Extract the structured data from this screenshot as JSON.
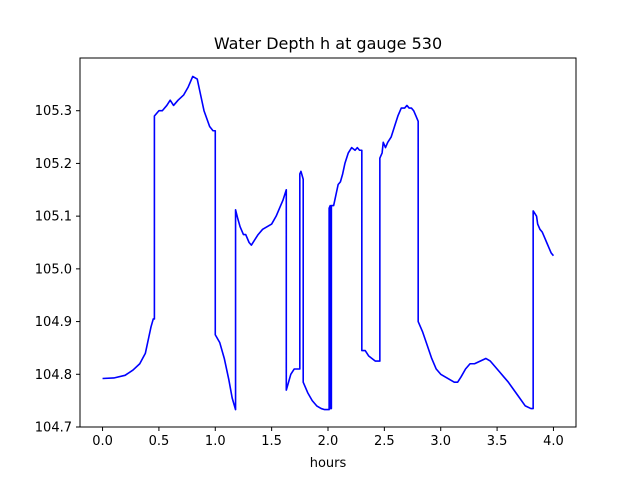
{
  "chart_data": {
    "type": "line",
    "title": "Water Depth h at gauge 530",
    "xlabel": "hours",
    "ylabel": "",
    "xlim": [
      -0.2,
      4.2
    ],
    "ylim": [
      104.7,
      105.4
    ],
    "xticks": [
      0.0,
      0.5,
      1.0,
      1.5,
      2.0,
      2.5,
      3.0,
      3.5,
      4.0
    ],
    "xtick_labels": [
      "0.0",
      "0.5",
      "1.0",
      "1.5",
      "2.0",
      "2.5",
      "3.0",
      "3.5",
      "4.0"
    ],
    "yticks": [
      104.7,
      104.8,
      104.9,
      105.0,
      105.1,
      105.2,
      105.3
    ],
    "ytick_labels": [
      "104.7",
      "104.8",
      "104.9",
      "105.0",
      "105.1",
      "105.2",
      "105.3"
    ],
    "grid": false,
    "legend": "none",
    "series": [
      {
        "color": "#0000ff",
        "x": [
          0.0,
          0.1,
          0.2,
          0.27,
          0.33,
          0.38,
          0.41,
          0.43,
          0.45,
          0.46,
          0.46,
          0.5,
          0.53,
          0.57,
          0.6,
          0.63,
          0.67,
          0.72,
          0.76,
          0.8,
          0.84,
          0.86,
          0.9,
          0.95,
          0.98,
          1.0,
          1.0,
          1.04,
          1.08,
          1.12,
          1.15,
          1.18,
          1.18,
          1.2,
          1.22,
          1.25,
          1.27,
          1.3,
          1.32,
          1.35,
          1.38,
          1.42,
          1.46,
          1.5,
          1.54,
          1.58,
          1.6,
          1.63,
          1.63,
          1.67,
          1.7,
          1.73,
          1.75,
          1.75,
          1.76,
          1.78,
          1.78,
          1.82,
          1.86,
          1.9,
          1.94,
          1.97,
          2.0,
          2.01,
          2.01,
          2.02,
          2.02,
          2.03,
          2.03,
          2.05,
          2.07,
          2.09,
          2.11,
          2.13,
          2.15,
          2.18,
          2.21,
          2.24,
          2.26,
          2.28,
          2.3,
          2.3,
          2.33,
          2.36,
          2.39,
          2.42,
          2.45,
          2.46,
          2.46,
          2.48,
          2.49,
          2.51,
          2.53,
          2.56,
          2.59,
          2.62,
          2.65,
          2.68,
          2.7,
          2.72,
          2.74,
          2.76,
          2.78,
          2.8,
          2.8,
          2.84,
          2.88,
          2.92,
          2.96,
          3.0,
          3.04,
          3.08,
          3.12,
          3.15,
          3.18,
          3.22,
          3.26,
          3.3,
          3.35,
          3.4,
          3.44,
          3.48,
          3.52,
          3.56,
          3.6,
          3.65,
          3.7,
          3.75,
          3.8,
          3.82,
          3.82,
          3.85,
          3.86,
          3.88,
          3.9,
          3.92,
          3.94,
          3.96,
          3.98,
          4.0
        ],
        "y": [
          104.792,
          104.793,
          104.798,
          104.808,
          104.82,
          104.84,
          104.87,
          104.89,
          104.905,
          104.905,
          105.29,
          105.3,
          105.3,
          105.31,
          105.32,
          105.31,
          105.32,
          105.33,
          105.345,
          105.365,
          105.36,
          105.34,
          105.3,
          105.27,
          105.262,
          105.262,
          104.875,
          104.86,
          104.83,
          104.79,
          104.755,
          104.733,
          105.112,
          105.095,
          105.08,
          105.065,
          105.065,
          105.05,
          105.045,
          105.055,
          105.065,
          105.075,
          105.08,
          105.085,
          105.1,
          105.12,
          105.13,
          105.15,
          104.77,
          104.8,
          104.81,
          104.81,
          104.81,
          105.18,
          105.185,
          105.17,
          104.785,
          104.765,
          104.75,
          104.74,
          104.735,
          104.733,
          104.733,
          104.733,
          105.115,
          105.12,
          104.735,
          104.735,
          105.12,
          105.12,
          105.14,
          105.16,
          105.165,
          105.18,
          105.2,
          105.22,
          105.23,
          105.225,
          105.23,
          105.225,
          105.225,
          104.845,
          104.845,
          104.835,
          104.83,
          104.825,
          104.825,
          104.825,
          105.21,
          105.22,
          105.24,
          105.23,
          105.24,
          105.25,
          105.27,
          105.29,
          105.305,
          105.305,
          105.31,
          105.305,
          105.305,
          105.3,
          105.29,
          105.28,
          104.9,
          104.88,
          104.855,
          104.83,
          104.81,
          104.8,
          104.795,
          104.79,
          104.785,
          104.785,
          104.795,
          104.81,
          104.82,
          104.82,
          104.825,
          104.83,
          104.825,
          104.815,
          104.805,
          104.795,
          104.785,
          104.77,
          104.755,
          104.74,
          104.735,
          104.735,
          105.11,
          105.1,
          105.085,
          105.075,
          105.07,
          105.06,
          105.05,
          105.04,
          105.03,
          105.025
        ]
      }
    ]
  }
}
